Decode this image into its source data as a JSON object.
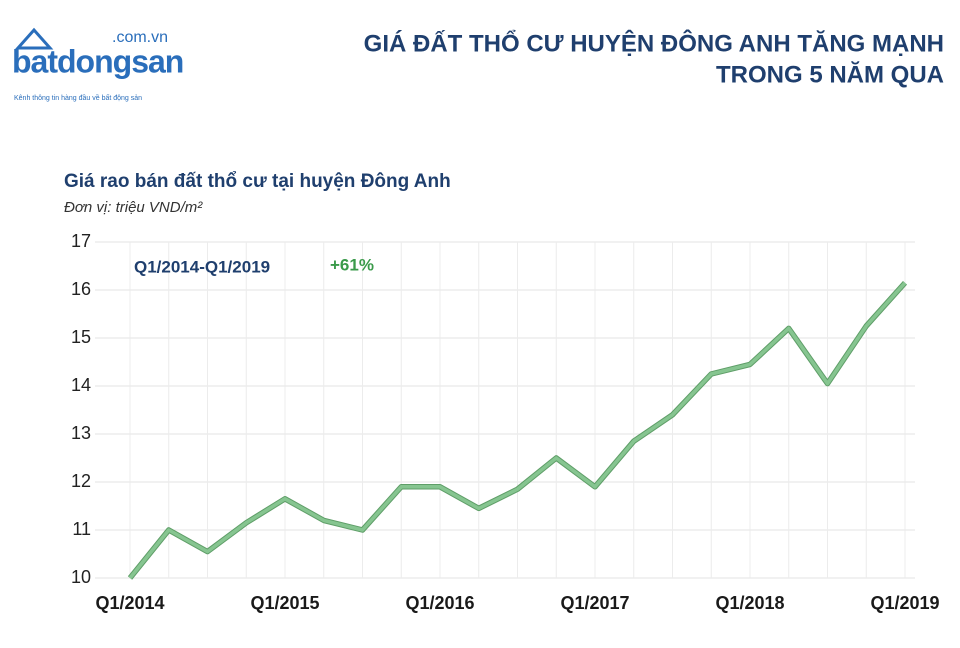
{
  "logo": {
    "name": "batdongsan",
    "domain": ".com.vn",
    "tagline": "Kênh thông tin hàng đầu về bất động sản"
  },
  "chart_data": {
    "type": "line",
    "headline": [
      "GIÁ ĐẤT THỔ CƯ HUYỆN ĐÔNG ANH TĂNG MẠNH",
      "TRONG 5 NĂM QUA"
    ],
    "title": "Giá rao bán đất thổ cư tại huyện Đông Anh",
    "subtitle": "Đơn vị: triệu VND/m²",
    "annotation": {
      "period": "Q1/2014-Q1/2019",
      "change": "+61%"
    },
    "categories": [
      "Q1/2014",
      null,
      null,
      null,
      "Q1/2015",
      null,
      null,
      null,
      "Q1/2016",
      null,
      null,
      null,
      "Q1/2017",
      null,
      null,
      null,
      "Q1/2018",
      null,
      null,
      null,
      "Q1/2019"
    ],
    "series": [
      {
        "name": "Giá rao bán",
        "color": "#86c590",
        "values": [
          10.0,
          11.0,
          10.55,
          11.15,
          11.65,
          11.2,
          11.0,
          11.9,
          11.9,
          11.45,
          11.85,
          12.5,
          11.9,
          12.85,
          13.4,
          14.25,
          14.45,
          15.2,
          14.05,
          15.25,
          16.15
        ]
      }
    ],
    "ylim": [
      10,
      17
    ],
    "yticks": [
      10,
      11,
      12,
      13,
      14,
      15,
      16,
      17
    ],
    "grid": true
  }
}
